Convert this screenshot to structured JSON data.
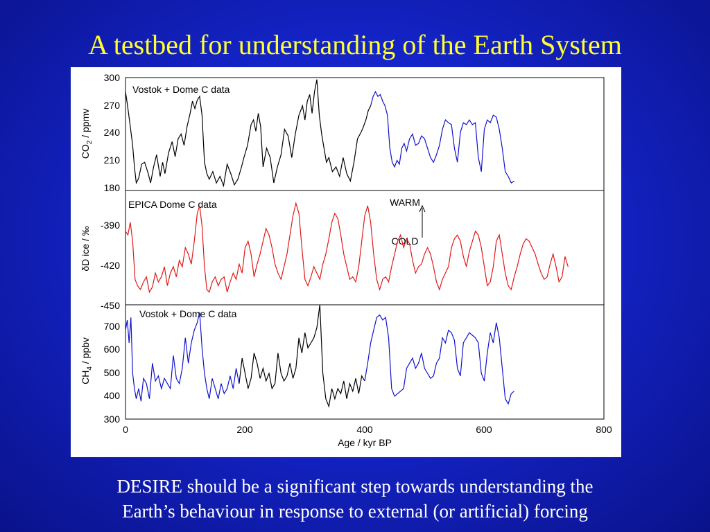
{
  "slide": {
    "title": "A testbed for understanding of the Earth System",
    "caption_lines": [
      "DESIRE should be a significant step towards understanding the",
      "Earth’s behaviour in response to external (or artificial) forcing"
    ]
  },
  "colors": {
    "background": "#1424c8",
    "title": "#ffff33",
    "caption": "#ffffff",
    "black": "#000000",
    "blue": "#1010d0",
    "red": "#e01818"
  },
  "chart_data": {
    "type": "line",
    "xlabel": "Age / kyr BP",
    "xlim": [
      0,
      800
    ],
    "xticks": [
      "0",
      "200",
      "400",
      "600",
      "800"
    ],
    "panels": [
      {
        "id": "co2",
        "ylabel_main": "CO",
        "ylabel_sub": "2",
        "ylabel_rest": " / ppmv",
        "ylim": [
          180,
          300
        ],
        "yticks": [
          "300",
          "270",
          "240",
          "210",
          "180"
        ],
        "annotation": "Vostok + Dome C data",
        "series": [
          {
            "color": "black",
            "x": [
              0,
              3,
              8,
              12,
              15,
              18,
              22,
              27,
              32,
              38,
              42,
              47,
              52,
              58,
              62,
              66,
              72,
              78,
              83,
              88,
              93,
              98,
              103,
              108,
              112,
              116,
              120,
              124,
              128,
              132,
              136,
              140,
              146,
              152,
              158,
              164,
              170,
              176,
              182,
              188,
              194,
              198,
              204,
              210,
              214,
              218,
              222,
              226,
              230,
              236,
              242,
              248,
              254,
              260,
              266,
              272,
              278,
              284,
              290,
              296,
              300,
              304,
              308,
              312,
              316,
              320,
              324,
              328,
              332,
              336,
              340,
              346,
              352,
              358,
              364,
              370,
              376,
              382,
              388,
              394,
              398,
              402,
              406,
              410
            ],
            "y": [
              285,
              272,
              248,
              228,
              205,
              188,
              193,
              208,
              210,
              198,
              188,
              205,
              218,
              195,
              210,
              198,
              220,
              232,
              216,
              235,
              240,
              228,
              248,
              262,
              275,
              267,
              276,
              280,
              260,
              210,
              198,
              192,
              200,
              188,
              195,
              185,
              208,
              198,
              186,
              192,
              205,
              215,
              228,
              250,
              255,
              243,
              262,
              248,
              205,
              225,
              215,
              188,
              205,
              218,
              245,
              238,
              215,
              240,
              260,
              270,
              255,
              275,
              282,
              262,
              285,
              298,
              260,
              240,
              225,
              210,
              215,
              200,
              205,
              195,
              215,
              198,
              190,
              210,
              235,
              242,
              248,
              255,
              265,
              270
            ]
          },
          {
            "color": "blue",
            "x": [
              410,
              414,
              418,
              422,
              426,
              430,
              434,
              438,
              442,
              446,
              450,
              454,
              458,
              462,
              466,
              470,
              475,
              480,
              485,
              490,
              495,
              500,
              505,
              510,
              515,
              520,
              525,
              530,
              535,
              540,
              545,
              550,
              555,
              560,
              565,
              570,
              575,
              580,
              585,
              590,
              595,
              600,
              605,
              610,
              615,
              620,
              625,
              630,
              635,
              640,
              645,
              650
            ],
            "y": [
              270,
              280,
              285,
              280,
              282,
              275,
              270,
              260,
              225,
              210,
              205,
              212,
              208,
              225,
              230,
              222,
              235,
              240,
              228,
              230,
              238,
              235,
              225,
              215,
              210,
              218,
              228,
              245,
              255,
              252,
              250,
              225,
              210,
              242,
              252,
              250,
              255,
              250,
              252,
              215,
              200,
              245,
              255,
              252,
              260,
              258,
              245,
              225,
              200,
              195,
              188,
              190
            ]
          }
        ]
      },
      {
        "id": "dD",
        "ylabel_main": "δD ice / ‰",
        "ylim": [
          -450,
          -360
        ],
        "yticks": [
          "-390",
          "-420",
          "-450"
        ],
        "annotation": "EPICA Dome C data",
        "arrow_top_label": "WARM",
        "arrow_bottom_label": "COLD",
        "series": [
          {
            "color": "red",
            "x": [
              0,
              4,
              8,
              12,
              16,
              20,
              25,
              30,
              35,
              40,
              45,
              50,
              55,
              60,
              65,
              70,
              75,
              80,
              85,
              90,
              95,
              100,
              105,
              110,
              115,
              120,
              124,
              128,
              132,
              136,
              140,
              145,
              150,
              155,
              160,
              165,
              170,
              175,
              180,
              185,
              190,
              195,
              200,
              205,
              210,
              215,
              220,
              225,
              230,
              235,
              240,
              245,
              250,
              255,
              260,
              265,
              270,
              275,
              280,
              285,
              290,
              295,
              300,
              305,
              310,
              315,
              320,
              325,
              330,
              335,
              340,
              345,
              350,
              355,
              360,
              365,
              370,
              375,
              380,
              385,
              390,
              395,
              400,
              405,
              410,
              415,
              420,
              425,
              430,
              435,
              440,
              445,
              450,
              455,
              460,
              465,
              470,
              475,
              480,
              485,
              490,
              495,
              500,
              505,
              510,
              515,
              520,
              525,
              530,
              535,
              540,
              545,
              550,
              555,
              560,
              565,
              570,
              575,
              580,
              585,
              590,
              595,
              600,
              605,
              610,
              615,
              620,
              625,
              630,
              635,
              640,
              645,
              650,
              655,
              660,
              665,
              670,
              675,
              680,
              685,
              690,
              695,
              700,
              705,
              710,
              715,
              720,
              725,
              730,
              735,
              740
            ],
            "y": [
              -392,
              -395,
              -385,
              -400,
              -430,
              -435,
              -438,
              -432,
              -428,
              -440,
              -436,
              -425,
              -432,
              -428,
              -420,
              -435,
              -425,
              -420,
              -428,
              -415,
              -420,
              -405,
              -410,
              -418,
              -400,
              -378,
              -372,
              -388,
              -420,
              -438,
              -440,
              -432,
              -428,
              -435,
              -430,
              -428,
              -440,
              -432,
              -425,
              -430,
              -418,
              -425,
              -405,
              -400,
              -410,
              -428,
              -418,
              -410,
              -400,
              -390,
              -395,
              -405,
              -418,
              -425,
              -430,
              -420,
              -410,
              -395,
              -380,
              -370,
              -378,
              -405,
              -430,
              -435,
              -428,
              -420,
              -425,
              -430,
              -418,
              -410,
              -398,
              -385,
              -378,
              -382,
              -395,
              -410,
              -420,
              -430,
              -428,
              -432,
              -420,
              -400,
              -380,
              -372,
              -385,
              -410,
              -430,
              -438,
              -430,
              -428,
              -432,
              -420,
              -410,
              -400,
              -395,
              -405,
              -398,
              -402,
              -415,
              -425,
              -420,
              -418,
              -410,
              -405,
              -410,
              -420,
              -432,
              -438,
              -430,
              -425,
              -420,
              -405,
              -398,
              -395,
              -400,
              -412,
              -420,
              -408,
              -400,
              -392,
              -395,
              -405,
              -420,
              -435,
              -432,
              -420,
              -400,
              -395,
              -410,
              -425,
              -435,
              -438,
              -428,
              -420,
              -410,
              -402,
              -398,
              -400,
              -405,
              -410,
              -418,
              -425,
              -430,
              -428,
              -418,
              -410,
              -420,
              -432,
              -428,
              -412,
              -420
            ]
          }
        ]
      },
      {
        "id": "ch4",
        "ylabel_main": "CH",
        "ylabel_sub": "4",
        "ylabel_rest": " / ppbv",
        "ylim": [
          300,
          750
        ],
        "yticks": [
          "700",
          "600",
          "500",
          "400",
          "300"
        ],
        "annotation": "Vostok + Dome C data",
        "series": [
          {
            "color": "blue",
            "x": [
              0,
              3,
              6,
              9,
              12,
              15,
              18,
              22,
              26,
              30,
              35,
              40,
              45,
              50,
              55,
              60,
              65,
              70,
              75,
              80,
              85,
              90,
              95,
              100,
              105,
              110,
              115,
              120,
              124,
              128,
              132,
              136,
              140,
              145,
              150,
              155,
              160,
              165,
              170,
              175,
              180,
              185,
              190
            ],
            "y": [
              650,
              690,
              600,
              700,
              480,
              420,
              380,
              420,
              370,
              460,
              440,
              380,
              520,
              450,
              470,
              420,
              460,
              440,
              420,
              550,
              460,
              440,
              500,
              620,
              520,
              600,
              650,
              680,
              720,
              580,
              480,
              420,
              380,
              460,
              420,
              380,
              440,
              400,
              420,
              470,
              420,
              500,
              440
            ]
          },
          {
            "color": "black",
            "x": [
              190,
              195,
              200,
              205,
              210,
              215,
              220,
              225,
              230,
              235,
              240,
              245,
              250,
              255,
              260,
              265,
              270,
              275,
              280,
              285,
              290,
              295,
              300,
              305,
              310,
              315,
              320,
              325,
              330,
              335,
              340,
              345,
              350,
              355,
              360,
              365,
              370,
              375,
              380,
              385,
              390,
              395,
              400
            ],
            "y": [
              440,
              540,
              480,
              420,
              460,
              560,
              520,
              460,
              500,
              450,
              480,
              420,
              440,
              560,
              480,
              450,
              470,
              520,
              460,
              500,
              620,
              560,
              640,
              580,
              600,
              620,
              660,
              750,
              480,
              380,
              350,
              420,
              380,
              420,
              400,
              450,
              380,
              440,
              410,
              460,
              400,
              470,
              450
            ]
          },
          {
            "color": "blue",
            "x": [
              400,
              405,
              410,
              415,
              420,
              425,
              430,
              435,
              440,
              445,
              450,
              455,
              460,
              465,
              470,
              475,
              480,
              485,
              490,
              495,
              500,
              505,
              510,
              515,
              520,
              525,
              530,
              535,
              540,
              545,
              550,
              555,
              560,
              565,
              570,
              575,
              580,
              585,
              590,
              595,
              600,
              605,
              610,
              615,
              620,
              625,
              630,
              635,
              640,
              645,
              650
            ],
            "y": [
              450,
              520,
              600,
              650,
              700,
              710,
              690,
              700,
              620,
              420,
              390,
              400,
              410,
              420,
              500,
              520,
              540,
              500,
              520,
              560,
              500,
              480,
              460,
              470,
              520,
              540,
              620,
              600,
              650,
              640,
              610,
              500,
              470,
              600,
              620,
              640,
              630,
              620,
              600,
              480,
              450,
              560,
              640,
              600,
              680,
              620,
              500,
              380,
              360,
              400,
              410
            ]
          }
        ]
      }
    ]
  }
}
